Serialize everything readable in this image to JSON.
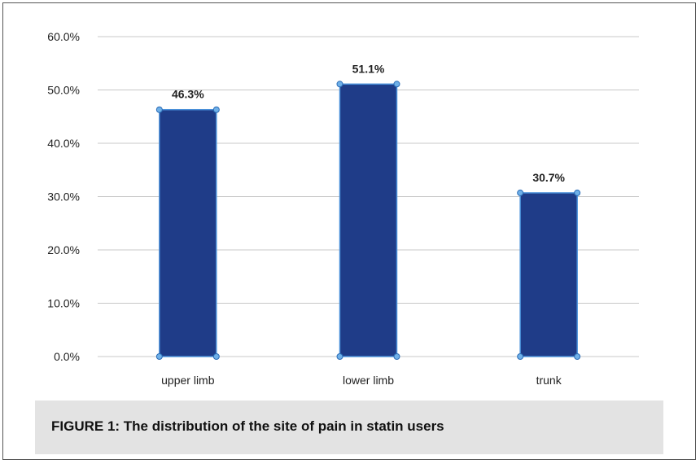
{
  "chart_data": {
    "type": "bar",
    "categories": [
      "upper limb",
      "lower limb",
      "trunk"
    ],
    "values": [
      46.3,
      51.1,
      30.7
    ],
    "data_labels": [
      "46.3%",
      "51.1%",
      "30.7%"
    ],
    "title": "",
    "xlabel": "",
    "ylabel": "",
    "ylim": [
      0,
      60
    ],
    "yticks": [
      0,
      10,
      20,
      30,
      40,
      50,
      60
    ],
    "ytick_labels": [
      "0.0%",
      "10.0%",
      "20.0%",
      "30.0%",
      "40.0%",
      "50.0%",
      "60.0%"
    ],
    "grid": true,
    "legend": "none",
    "bar_color": "#1f3c88",
    "bar_edge_color": "#4a90d9",
    "grid_color": "#c8c8c8"
  },
  "caption": {
    "text": "FIGURE 1: The distribution of the site of pain in statin users"
  }
}
